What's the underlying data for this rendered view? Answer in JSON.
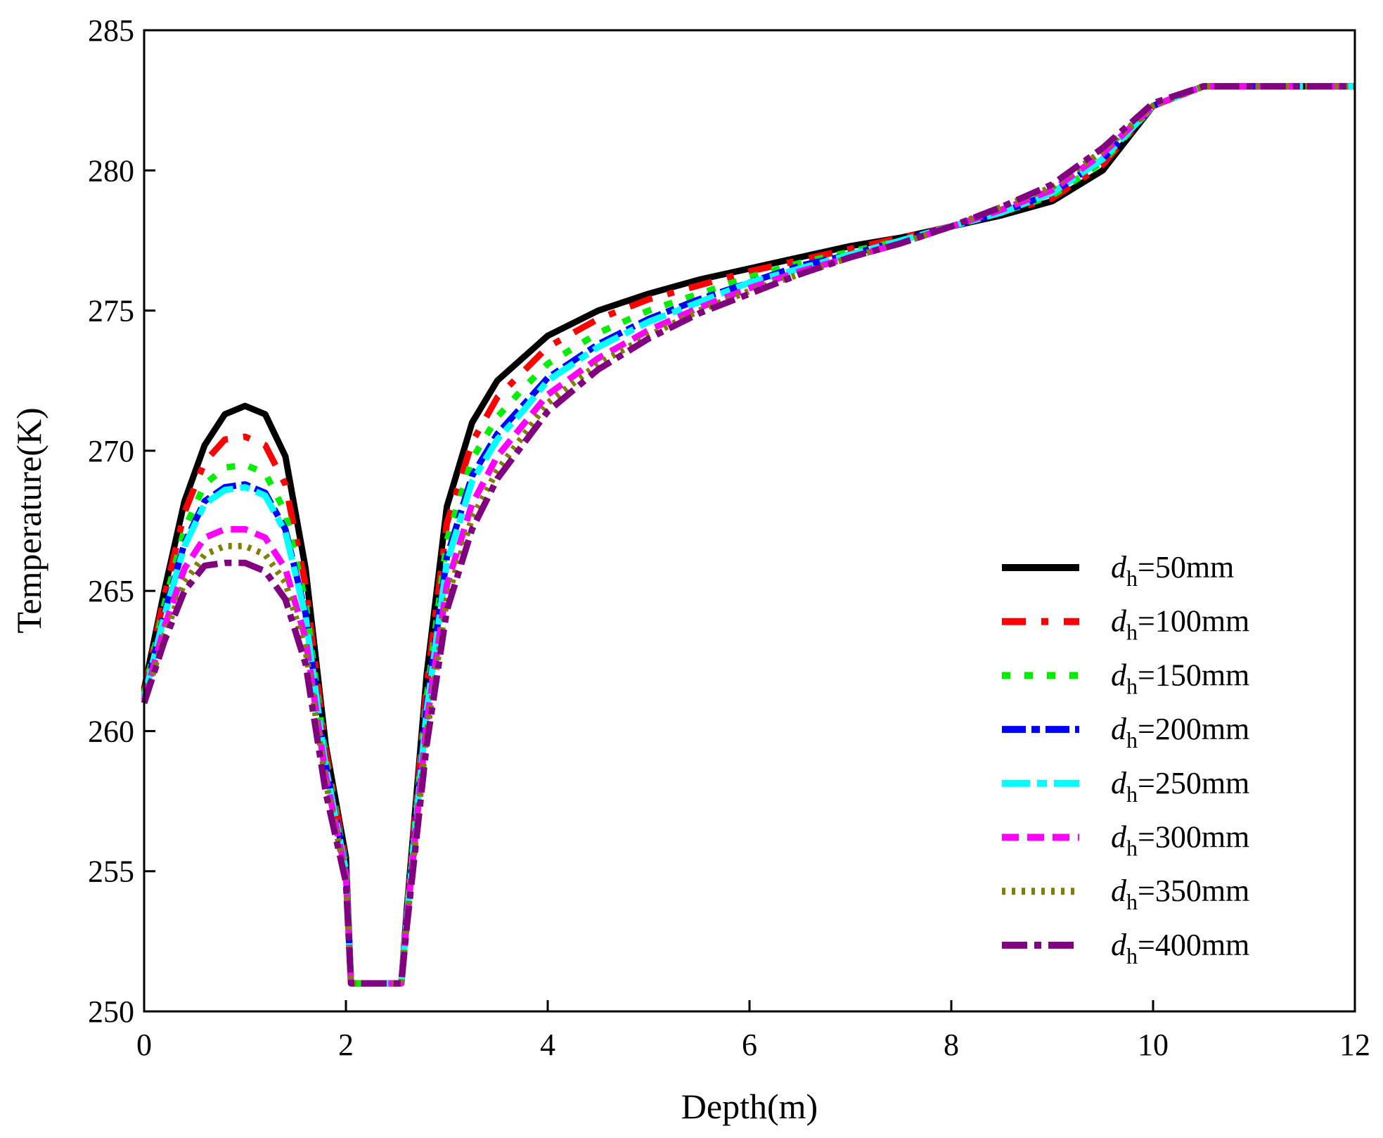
{
  "chart_data": {
    "type": "line",
    "title": "",
    "xlabel": "Depth(m)",
    "ylabel": "Temperature(K)",
    "xlim": [
      0,
      12
    ],
    "ylim": [
      250,
      285
    ],
    "xticks": [
      0,
      2,
      4,
      6,
      8,
      10,
      12
    ],
    "yticks": [
      250,
      255,
      260,
      265,
      270,
      275,
      280,
      285
    ],
    "grid": false,
    "legend_position": "bottom-right",
    "x": [
      0,
      0.2,
      0.4,
      0.6,
      0.8,
      1.0,
      1.2,
      1.4,
      1.6,
      1.8,
      2.0,
      2.05,
      2.3,
      2.55,
      2.6,
      2.8,
      3.0,
      3.25,
      3.5,
      3.75,
      4.0,
      4.5,
      5.0,
      5.5,
      6.0,
      6.5,
      7.0,
      7.5,
      8.0,
      8.5,
      9.0,
      9.5,
      10.0,
      10.5,
      11.0,
      12.0
    ],
    "series": [
      {
        "name_var": "d",
        "name_sub": "h",
        "name_rest": "=50mm",
        "color": "#000000",
        "dash": "",
        "values": [
          261.5,
          265.0,
          268.2,
          270.2,
          271.3,
          271.6,
          271.3,
          269.8,
          265.8,
          259.5,
          255.5,
          251.0,
          251.0,
          251.0,
          253.5,
          262.0,
          268.0,
          271.0,
          272.5,
          273.3,
          274.1,
          275.0,
          275.6,
          276.1,
          276.5,
          276.9,
          277.3,
          277.6,
          278.0,
          278.4,
          278.9,
          280.0,
          282.3,
          283.0,
          283.0,
          283.0
        ]
      },
      {
        "name_var": "d",
        "name_sub": "h",
        "name_rest": "=100mm",
        "color": "#ff0000",
        "dash": "34 22 10 22",
        "values": [
          261.4,
          264.8,
          267.8,
          269.6,
          270.4,
          270.5,
          270.2,
          268.8,
          265.2,
          259.3,
          255.3,
          251.0,
          251.0,
          251.0,
          253.4,
          261.6,
          267.4,
          270.3,
          271.9,
          272.8,
          273.7,
          274.7,
          275.4,
          275.9,
          276.4,
          276.8,
          277.2,
          277.6,
          278.0,
          278.5,
          279.0,
          280.2,
          282.3,
          283.0,
          283.0,
          283.0
        ]
      },
      {
        "name_var": "d",
        "name_sub": "h",
        "name_rest": "=150mm",
        "color": "#00ee00",
        "dash": "12 20",
        "values": [
          261.3,
          264.5,
          267.2,
          268.8,
          269.4,
          269.5,
          269.2,
          267.8,
          264.6,
          259.0,
          255.2,
          251.0,
          251.0,
          251.0,
          253.3,
          261.2,
          266.8,
          269.7,
          271.2,
          272.2,
          273.1,
          274.2,
          275.0,
          275.6,
          276.2,
          276.7,
          277.1,
          277.5,
          278.0,
          278.5,
          279.1,
          280.3,
          282.3,
          283.0,
          283.0,
          283.0
        ]
      },
      {
        "name_var": "d",
        "name_sub": "h",
        "name_rest": "=200mm",
        "color": "#0000ff",
        "dash": "34 8 12 8",
        "values": [
          261.2,
          264.2,
          266.7,
          268.2,
          268.7,
          268.8,
          268.5,
          267.2,
          264.2,
          258.8,
          255.1,
          251.0,
          251.0,
          251.0,
          253.2,
          260.9,
          266.2,
          269.1,
          270.6,
          271.6,
          272.6,
          273.8,
          274.7,
          275.4,
          276.0,
          276.6,
          277.0,
          277.5,
          278.0,
          278.5,
          279.2,
          280.4,
          282.3,
          283.0,
          283.0,
          283.0
        ]
      },
      {
        "name_var": "d",
        "name_sub": "h",
        "name_rest": "=250mm",
        "color": "#00ffff",
        "dash": "40 10 14 10",
        "values": [
          261.2,
          264.1,
          266.6,
          268.1,
          268.6,
          268.7,
          268.4,
          267.1,
          264.1,
          258.7,
          255.0,
          251.0,
          251.0,
          251.0,
          253.2,
          260.7,
          266.0,
          268.9,
          270.4,
          271.4,
          272.5,
          273.7,
          274.6,
          275.3,
          276.0,
          276.5,
          277.0,
          277.5,
          278.0,
          278.5,
          279.2,
          280.4,
          282.3,
          283.0,
          283.0,
          283.0
        ]
      },
      {
        "name_var": "d",
        "name_sub": "h",
        "name_rest": "=300mm",
        "color": "#ff00ff",
        "dash": "24 12",
        "values": [
          261.1,
          263.7,
          265.8,
          266.9,
          267.2,
          267.2,
          266.9,
          265.8,
          263.3,
          258.4,
          254.9,
          251.0,
          251.0,
          251.0,
          253.1,
          260.3,
          265.2,
          268.1,
          269.8,
          270.9,
          272.0,
          273.3,
          274.3,
          275.1,
          275.8,
          276.4,
          276.9,
          277.4,
          278.0,
          278.6,
          279.3,
          280.6,
          282.3,
          283.0,
          283.0,
          283.0
        ]
      },
      {
        "name_var": "d",
        "name_sub": "h",
        "name_rest": "=350mm",
        "color": "#808000",
        "dash": "5 9",
        "values": [
          261.0,
          263.4,
          265.3,
          266.3,
          266.6,
          266.6,
          266.3,
          265.3,
          262.9,
          258.2,
          254.8,
          251.0,
          251.0,
          251.0,
          253.0,
          259.9,
          264.7,
          267.6,
          269.3,
          270.5,
          271.7,
          273.1,
          274.1,
          275.0,
          275.7,
          276.3,
          276.9,
          277.4,
          278.0,
          278.7,
          279.4,
          280.7,
          282.3,
          283.0,
          283.0,
          283.0
        ]
      },
      {
        "name_var": "d",
        "name_sub": "h",
        "name_rest": "=400mm",
        "color": "#800080",
        "dash": "36 10 10 10",
        "values": [
          261.0,
          263.2,
          265.0,
          265.9,
          266.0,
          266.0,
          265.7,
          264.7,
          262.4,
          257.8,
          254.6,
          251.0,
          251.0,
          251.0,
          252.9,
          259.5,
          264.3,
          267.2,
          269.0,
          270.2,
          271.4,
          272.9,
          274.0,
          274.9,
          275.6,
          276.3,
          276.9,
          277.4,
          278.0,
          278.7,
          279.5,
          280.8,
          282.4,
          283.0,
          283.0,
          283.0
        ]
      }
    ]
  }
}
